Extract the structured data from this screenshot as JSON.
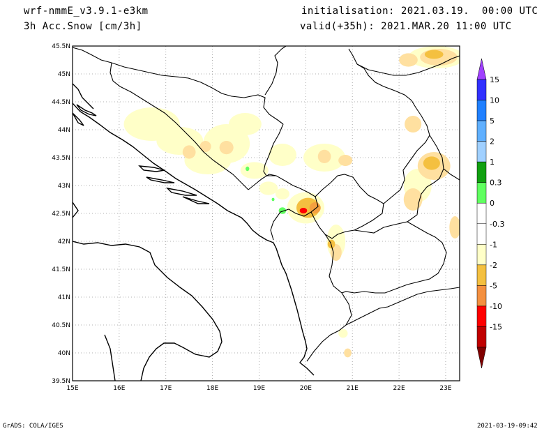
{
  "header": {
    "model": "wrf-nmmE_v3.9.1-e3km",
    "field": "3h Acc.Snow [cm/3h]",
    "init": "initialisation: 2021.03.19.  00:00 UTC",
    "valid": "valid(+35h): 2021.MAR.20 11:00 UTC"
  },
  "map": {
    "lon_range": [
      15,
      23.3
    ],
    "lat_range": [
      39.5,
      45.5
    ],
    "lon_ticks": [
      {
        "v": 15,
        "label": "15E"
      },
      {
        "v": 16,
        "label": "16E"
      },
      {
        "v": 17,
        "label": "17E"
      },
      {
        "v": 18,
        "label": "18E"
      },
      {
        "v": 19,
        "label": "19E"
      },
      {
        "v": 20,
        "label": "20E"
      },
      {
        "v": 21,
        "label": "21E"
      },
      {
        "v": 22,
        "label": "22E"
      },
      {
        "v": 23,
        "label": "23E"
      }
    ],
    "lat_ticks": [
      {
        "v": 39.5,
        "label": "39.5N"
      },
      {
        "v": 40,
        "label": "40N"
      },
      {
        "v": 40.5,
        "label": "40.5N"
      },
      {
        "v": 41,
        "label": "41N"
      },
      {
        "v": 41.5,
        "label": "41.5N"
      },
      {
        "v": 42,
        "label": "42N"
      },
      {
        "v": 42.5,
        "label": "42.5N"
      },
      {
        "v": 43,
        "label": "43N"
      },
      {
        "v": 43.5,
        "label": "43.5N"
      },
      {
        "v": 44,
        "label": "44N"
      },
      {
        "v": 44.5,
        "label": "44.5N"
      },
      {
        "v": 45,
        "label": "45N"
      },
      {
        "v": 45.5,
        "label": "45.5N"
      }
    ],
    "grid": "dotted",
    "snow_patches": [
      {
        "lon": 16.7,
        "lat": 44.1,
        "rlon": 0.6,
        "rlat": 0.3,
        "level": 1
      },
      {
        "lon": 17.3,
        "lat": 43.8,
        "rlon": 0.5,
        "rlat": 0.25,
        "level": 1
      },
      {
        "lon": 17.9,
        "lat": 43.45,
        "rlon": 0.5,
        "rlat": 0.25,
        "level": 1
      },
      {
        "lon": 18.3,
        "lat": 43.75,
        "rlon": 0.5,
        "rlat": 0.35,
        "level": 1
      },
      {
        "lon": 18.7,
        "lat": 44.1,
        "rlon": 0.35,
        "rlat": 0.2,
        "level": 1
      },
      {
        "lon": 17.5,
        "lat": 43.6,
        "rlon": 0.14,
        "rlat": 0.12,
        "level": 2
      },
      {
        "lon": 17.85,
        "lat": 43.7,
        "rlon": 0.12,
        "rlat": 0.1,
        "level": 2
      },
      {
        "lon": 18.3,
        "lat": 43.68,
        "rlon": 0.15,
        "rlat": 0.12,
        "level": 2
      },
      {
        "lon": 18.9,
        "lat": 43.27,
        "rlon": 0.3,
        "rlat": 0.15,
        "level": 1
      },
      {
        "lon": 19.5,
        "lat": 43.55,
        "rlon": 0.3,
        "rlat": 0.2,
        "level": 1
      },
      {
        "lon": 20.4,
        "lat": 43.5,
        "rlon": 0.45,
        "rlat": 0.25,
        "level": 1
      },
      {
        "lon": 20.4,
        "lat": 43.52,
        "rlon": 0.14,
        "rlat": 0.12,
        "level": 2
      },
      {
        "lon": 20.85,
        "lat": 43.45,
        "rlon": 0.15,
        "rlat": 0.1,
        "level": 2
      },
      {
        "lon": 19.2,
        "lat": 42.95,
        "rlon": 0.2,
        "rlat": 0.12,
        "level": 1
      },
      {
        "lon": 19.5,
        "lat": 42.85,
        "rlon": 0.15,
        "rlat": 0.1,
        "level": 1
      },
      {
        "lon": 20.0,
        "lat": 42.6,
        "rlon": 0.4,
        "rlat": 0.28,
        "level": 1
      },
      {
        "lon": 20.05,
        "lat": 42.6,
        "rlon": 0.25,
        "rlat": 0.18,
        "level": 3
      },
      {
        "lon": 20.2,
        "lat": 42.6,
        "rlon": 0.12,
        "rlat": 0.1,
        "level": 4
      },
      {
        "lon": 19.95,
        "lat": 42.55,
        "rlon": 0.08,
        "rlat": 0.05,
        "level": 5
      },
      {
        "lon": 20.65,
        "lat": 42.0,
        "rlon": 0.2,
        "rlat": 0.3,
        "level": 1
      },
      {
        "lon": 20.65,
        "lat": 41.8,
        "rlon": 0.12,
        "rlat": 0.15,
        "level": 2
      },
      {
        "lon": 20.55,
        "lat": 41.95,
        "rlon": 0.08,
        "rlat": 0.08,
        "level": 3
      },
      {
        "lon": 22.3,
        "lat": 44.1,
        "rlon": 0.18,
        "rlat": 0.15,
        "level": 2
      },
      {
        "lon": 22.4,
        "lat": 43.0,
        "rlon": 0.3,
        "rlat": 0.3,
        "level": 1
      },
      {
        "lon": 22.3,
        "lat": 42.75,
        "rlon": 0.2,
        "rlat": 0.2,
        "level": 2
      },
      {
        "lon": 22.75,
        "lat": 43.35,
        "rlon": 0.35,
        "rlat": 0.25,
        "level": 2
      },
      {
        "lon": 22.7,
        "lat": 43.4,
        "rlon": 0.18,
        "rlat": 0.12,
        "level": 3
      },
      {
        "lon": 23.2,
        "lat": 42.25,
        "rlon": 0.12,
        "rlat": 0.2,
        "level": 2
      },
      {
        "lon": 22.8,
        "lat": 45.3,
        "rlon": 0.6,
        "rlat": 0.2,
        "level": 1
      },
      {
        "lon": 22.85,
        "lat": 45.3,
        "rlon": 0.4,
        "rlat": 0.15,
        "level": 2
      },
      {
        "lon": 22.75,
        "lat": 45.35,
        "rlon": 0.2,
        "rlat": 0.08,
        "level": 3
      },
      {
        "lon": 22.2,
        "lat": 45.25,
        "rlon": 0.2,
        "rlat": 0.12,
        "level": 2
      },
      {
        "lon": 20.9,
        "lat": 40.0,
        "rlon": 0.08,
        "rlat": 0.08,
        "level": 2
      },
      {
        "lon": 20.8,
        "lat": 40.35,
        "rlon": 0.1,
        "rlat": 0.08,
        "level": 1
      }
    ],
    "rain_dots": [
      {
        "lon": 19.5,
        "lat": 42.55,
        "rlon": 0.08,
        "rlat": 0.06
      },
      {
        "lon": 18.75,
        "lat": 43.3,
        "rlon": 0.04,
        "rlat": 0.04
      },
      {
        "lon": 19.3,
        "lat": 42.75,
        "rlon": 0.03,
        "rlat": 0.03
      }
    ],
    "level_colors": [
      "#ffffc8",
      "#ffe0a0",
      "#f4c040",
      "#f4a040",
      "#ff0000"
    ]
  },
  "colorbar": {
    "segments": [
      {
        "color": "#a040ff"
      },
      {
        "color": "#3030ff"
      },
      {
        "color": "#2080ff"
      },
      {
        "color": "#60b0ff"
      },
      {
        "color": "#a0d0ff"
      },
      {
        "color": "#10a010"
      },
      {
        "color": "#60ff60"
      },
      {
        "color": "#ffffff"
      },
      {
        "color": "#ffffff"
      },
      {
        "color": "#ffffc8"
      },
      {
        "color": "#f4c040"
      },
      {
        "color": "#f49040"
      },
      {
        "color": "#ff0000"
      },
      {
        "color": "#c00000"
      },
      {
        "color": "#800000"
      }
    ],
    "labels": [
      "15",
      "10",
      "5",
      "2",
      "1",
      "0.3",
      "0",
      "-0.3",
      "-1",
      "-2",
      "-5",
      "-10",
      "-15"
    ]
  },
  "footer": {
    "left": "GrADS: COLA/IGES",
    "right": "2021-03-19-09:42"
  }
}
